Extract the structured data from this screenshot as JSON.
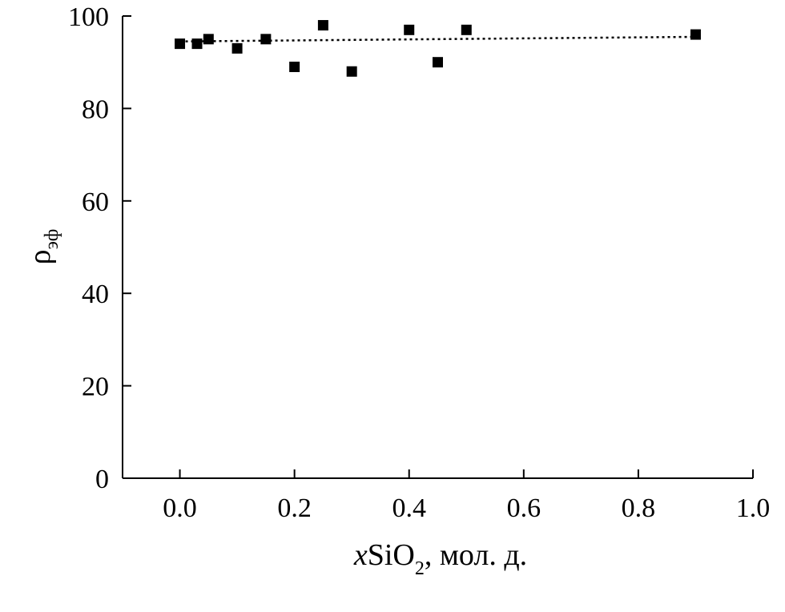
{
  "chart_data": {
    "type": "scatter",
    "title": "",
    "xlabel": {
      "variable": "x",
      "main": "SiO",
      "subscript": "2",
      "suffix": ", мол. д."
    },
    "ylabel": {
      "symbol": "ρ",
      "subscript": "эф"
    },
    "xlim": [
      -0.1,
      1.0
    ],
    "ylim": [
      0,
      100
    ],
    "xticks": [
      "0.0",
      "0.2",
      "0.4",
      "0.6",
      "0.8",
      "1.0"
    ],
    "yticks": [
      "0",
      "20",
      "40",
      "60",
      "80",
      "100"
    ],
    "grid": false,
    "legend": "none",
    "series": [
      {
        "marker": "square",
        "color": "#000000",
        "points": [
          {
            "x": 0.0,
            "y": 94
          },
          {
            "x": 0.03,
            "y": 94
          },
          {
            "x": 0.05,
            "y": 95
          },
          {
            "x": 0.1,
            "y": 93
          },
          {
            "x": 0.15,
            "y": 95
          },
          {
            "x": 0.2,
            "y": 89
          },
          {
            "x": 0.25,
            "y": 98
          },
          {
            "x": 0.3,
            "y": 88
          },
          {
            "x": 0.4,
            "y": 97
          },
          {
            "x": 0.45,
            "y": 90
          },
          {
            "x": 0.5,
            "y": 97
          },
          {
            "x": 0.9,
            "y": 96
          }
        ]
      }
    ],
    "trendline": {
      "style": "dotted",
      "color": "#000000",
      "x": [
        0.0,
        0.9
      ],
      "y": [
        94.5,
        95.5
      ]
    }
  }
}
